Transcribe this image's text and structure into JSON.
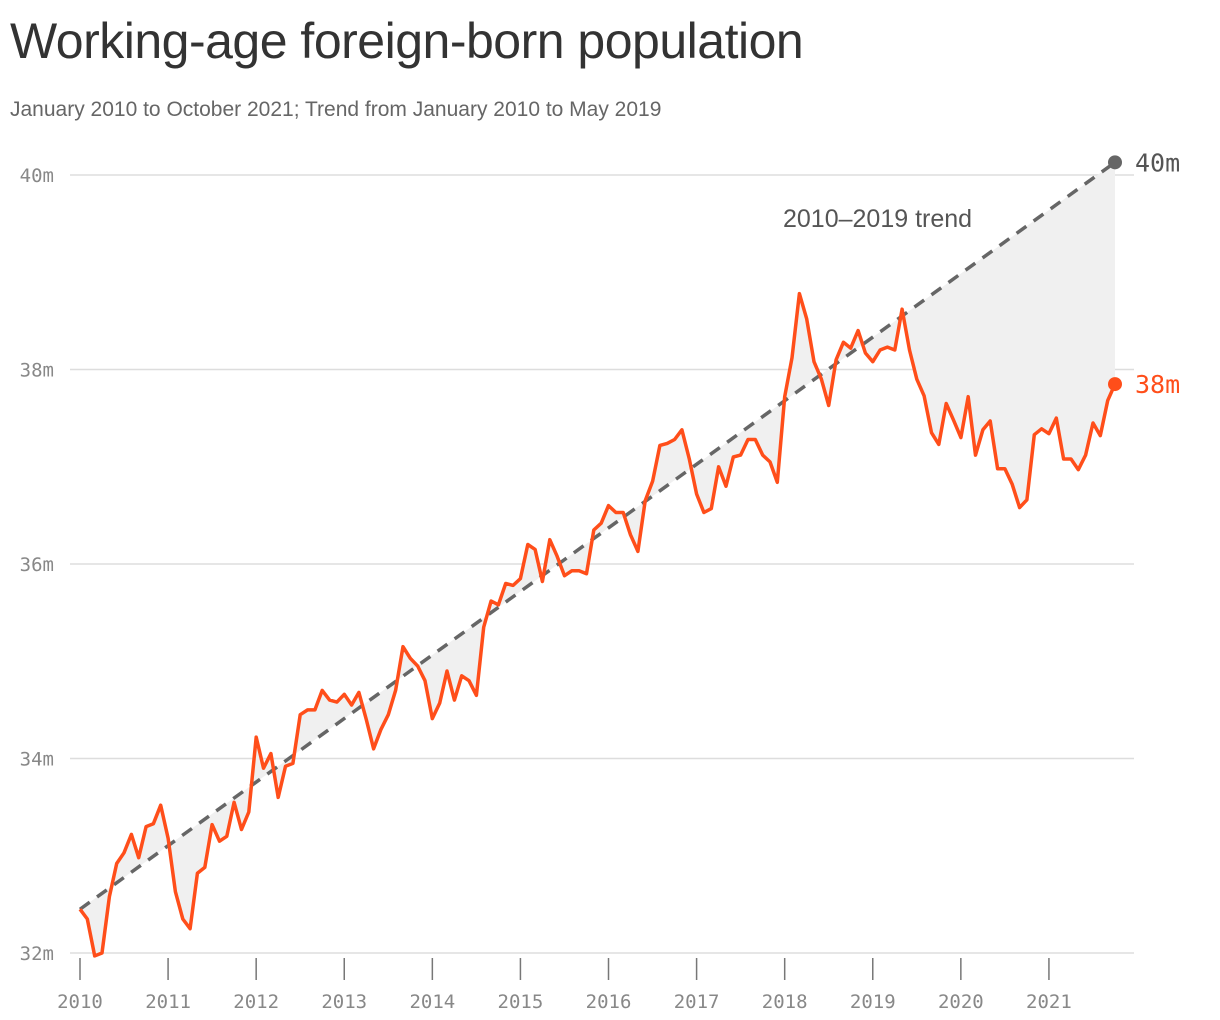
{
  "title": "Working-age foreign-born population",
  "subtitle": "January 2010 to October 2021; Trend from January 2010 to May 2019",
  "chart_data": {
    "type": "line",
    "title": "Working-age foreign-born population",
    "subtitle": "January 2010 to October 2021; Trend from January 2010 to May 2019",
    "xlabel": "",
    "ylabel": "",
    "ylim": [
      32,
      40
    ],
    "xlim": [
      "2010-01",
      "2021-10"
    ],
    "grid": "horizontal",
    "y_ticks": [
      {
        "value": 32,
        "label": "32m"
      },
      {
        "value": 34,
        "label": "34m"
      },
      {
        "value": 36,
        "label": "36m"
      },
      {
        "value": 38,
        "label": "38m"
      },
      {
        "value": 40,
        "label": "40m"
      }
    ],
    "x_ticks": [
      {
        "value": "2010-01",
        "label": "2010"
      },
      {
        "value": "2011-01",
        "label": "2011"
      },
      {
        "value": "2012-01",
        "label": "2012"
      },
      {
        "value": "2013-01",
        "label": "2013"
      },
      {
        "value": "2014-01",
        "label": "2014"
      },
      {
        "value": "2015-01",
        "label": "2015"
      },
      {
        "value": "2016-01",
        "label": "2016"
      },
      {
        "value": "2017-01",
        "label": "2017"
      },
      {
        "value": "2018-01",
        "label": "2018"
      },
      {
        "value": "2019-01",
        "label": "2019"
      },
      {
        "value": "2020-01",
        "label": "2020"
      },
      {
        "value": "2021-01",
        "label": "2021"
      }
    ],
    "series": [
      {
        "color": "#ff4e1a",
        "end_label": "38m",
        "start": "2010-01",
        "frequency": "monthly",
        "values": [
          32.45,
          32.35,
          31.97,
          32.0,
          32.58,
          32.92,
          33.03,
          33.22,
          32.98,
          33.3,
          33.33,
          33.52,
          33.18,
          32.63,
          32.35,
          32.25,
          32.82,
          32.88,
          33.32,
          33.15,
          33.2,
          33.55,
          33.27,
          33.45,
          34.22,
          33.9,
          34.05,
          33.6,
          33.92,
          33.95,
          34.45,
          34.5,
          34.5,
          34.7,
          34.6,
          34.58,
          34.66,
          34.55,
          34.68,
          34.4,
          34.1,
          34.3,
          34.45,
          34.7,
          35.15,
          35.03,
          34.95,
          34.8,
          34.41,
          34.57,
          34.9,
          34.6,
          34.85,
          34.8,
          34.65,
          35.35,
          35.62,
          35.58,
          35.8,
          35.78,
          35.85,
          36.2,
          36.15,
          35.82,
          36.25,
          36.08,
          35.88,
          35.93,
          35.93,
          35.9,
          36.35,
          36.42,
          36.6,
          36.53,
          36.53,
          36.3,
          36.13,
          36.65,
          36.85,
          37.22,
          37.24,
          37.28,
          37.38,
          37.08,
          36.72,
          36.53,
          36.57,
          37.0,
          36.8,
          37.1,
          37.12,
          37.28,
          37.28,
          37.12,
          37.05,
          36.84,
          37.72,
          38.12,
          38.78,
          38.52,
          38.08,
          37.9,
          37.63,
          38.1,
          38.28,
          38.22,
          38.4,
          38.17,
          38.08,
          38.2,
          38.23,
          38.2,
          38.62,
          38.2,
          37.9,
          37.73,
          37.35,
          37.23,
          37.65,
          37.48,
          37.3,
          37.72,
          37.12,
          37.38,
          37.47,
          36.98,
          36.98,
          36.82,
          36.58,
          36.66,
          37.33,
          37.39,
          37.34,
          37.5,
          37.08,
          37.08,
          36.97,
          37.12,
          37.45,
          37.32,
          37.68,
          37.85
        ]
      },
      {
        "name": "2010-2019 trend",
        "color": "#666666",
        "style": "dashed",
        "end_label": "40m",
        "start": "2010-01",
        "end": "2021-10",
        "start_value": 32.45,
        "end_value": 40.13
      }
    ],
    "annotations": [
      {
        "text": "2010–2019 trend"
      }
    ],
    "shading": "gap between trend and actual filled light gray"
  }
}
